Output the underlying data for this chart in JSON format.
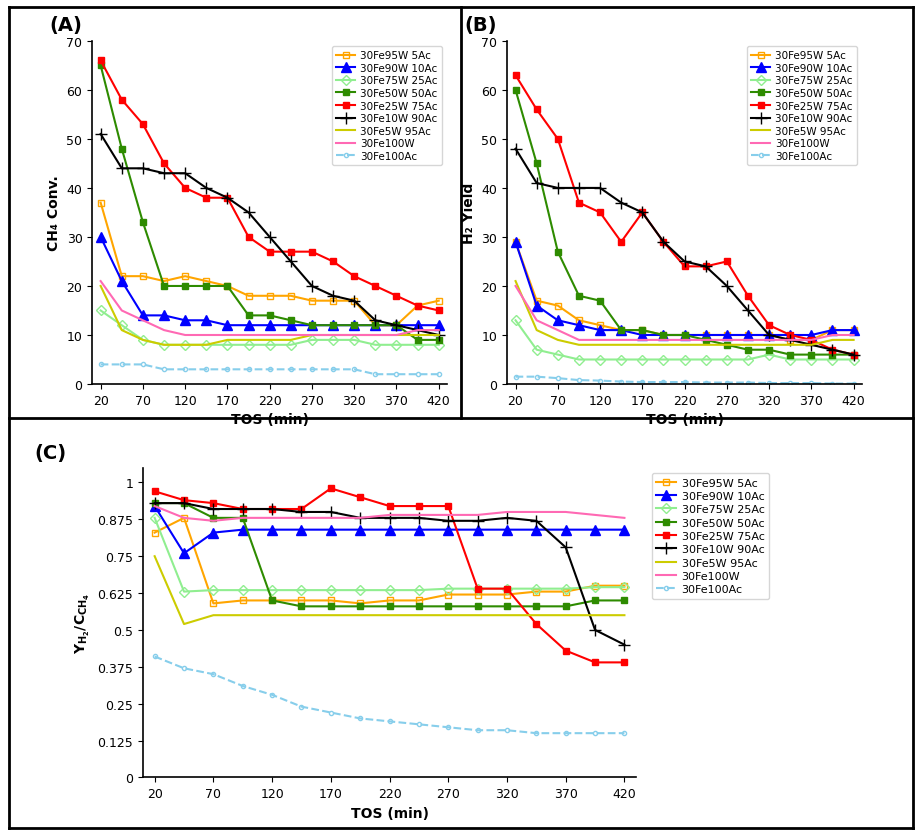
{
  "tos": [
    20,
    45,
    70,
    95,
    120,
    145,
    170,
    195,
    220,
    245,
    270,
    295,
    320,
    345,
    370,
    395,
    420
  ],
  "series": [
    {
      "label": "30Fe95W 5Ac",
      "color": "#FFA500",
      "marker": "s",
      "fillstyle": "none",
      "linestyle": "-",
      "A": [
        37,
        22,
        22,
        21,
        22,
        21,
        20,
        18,
        18,
        18,
        17,
        17,
        17,
        12,
        12,
        16,
        17
      ],
      "B": [
        29,
        17,
        16,
        13,
        12,
        11,
        11,
        10,
        10,
        10,
        10,
        10,
        10,
        9,
        9,
        11,
        11
      ],
      "C": [
        0.83,
        0.88,
        0.59,
        0.6,
        0.6,
        0.6,
        0.6,
        0.59,
        0.6,
        0.6,
        0.62,
        0.62,
        0.62,
        0.63,
        0.63,
        0.65,
        0.65
      ]
    },
    {
      "label": "30Fe90W 10Ac",
      "color": "#0000FF",
      "marker": "^",
      "fillstyle": "full",
      "linestyle": "-",
      "A": [
        30,
        21,
        14,
        14,
        13,
        13,
        12,
        12,
        12,
        12,
        12,
        12,
        12,
        12,
        12,
        12,
        12
      ],
      "B": [
        29,
        16,
        13,
        12,
        11,
        11,
        10,
        10,
        10,
        10,
        10,
        10,
        10,
        10,
        10,
        11,
        11
      ],
      "C": [
        0.92,
        0.76,
        0.83,
        0.84,
        0.84,
        0.84,
        0.84,
        0.84,
        0.84,
        0.84,
        0.84,
        0.84,
        0.84,
        0.84,
        0.84,
        0.84,
        0.84
      ]
    },
    {
      "label": "30Fe75W 25Ac",
      "color": "#90EE90",
      "marker": "D",
      "fillstyle": "none",
      "linestyle": "-",
      "A": [
        15,
        12,
        9,
        8,
        8,
        8,
        8,
        8,
        8,
        8,
        9,
        9,
        9,
        8,
        8,
        8,
        8
      ],
      "B": [
        13,
        7,
        6,
        5,
        5,
        5,
        5,
        5,
        5,
        5,
        5,
        5,
        6,
        5,
        5,
        5,
        5
      ],
      "C": [
        0.88,
        0.63,
        0.635,
        0.635,
        0.635,
        0.635,
        0.635,
        0.635,
        0.635,
        0.635,
        0.64,
        0.64,
        0.64,
        0.64,
        0.64,
        0.645,
        0.645
      ]
    },
    {
      "label": "30Fe50W 50Ac",
      "color": "#2E8B00",
      "marker": "s",
      "fillstyle": "full",
      "linestyle": "-",
      "A": [
        65,
        48,
        33,
        20,
        20,
        20,
        20,
        14,
        14,
        13,
        12,
        12,
        12,
        12,
        12,
        9,
        9
      ],
      "B": [
        60,
        45,
        27,
        18,
        17,
        11,
        11,
        10,
        10,
        9,
        8,
        7,
        7,
        6,
        6,
        6,
        6
      ],
      "C": [
        0.93,
        0.93,
        0.88,
        0.88,
        0.6,
        0.58,
        0.58,
        0.58,
        0.58,
        0.58,
        0.58,
        0.58,
        0.58,
        0.58,
        0.58,
        0.6,
        0.6
      ]
    },
    {
      "label": "30Fe25W 75Ac",
      "color": "#FF0000",
      "marker": "s",
      "fillstyle": "full",
      "linestyle": "-",
      "A": [
        66,
        58,
        53,
        45,
        40,
        38,
        38,
        30,
        27,
        27,
        27,
        25,
        22,
        20,
        18,
        16,
        15
      ],
      "B": [
        63,
        56,
        50,
        37,
        35,
        29,
        35,
        29,
        24,
        24,
        25,
        18,
        12,
        10,
        9,
        7,
        6
      ],
      "C": [
        0.97,
        0.94,
        0.93,
        0.91,
        0.91,
        0.91,
        0.98,
        0.95,
        0.92,
        0.92,
        0.92,
        0.64,
        0.64,
        0.52,
        0.43,
        0.39,
        0.39
      ]
    },
    {
      "label": "30Fe10W 90Ac",
      "color": "#000000",
      "marker": "+",
      "fillstyle": "full",
      "linestyle": "-",
      "A": [
        51,
        44,
        44,
        43,
        43,
        40,
        38,
        35,
        30,
        25,
        20,
        18,
        17,
        13,
        12,
        11,
        10
      ],
      "B": [
        48,
        41,
        40,
        40,
        40,
        37,
        35,
        29,
        25,
        24,
        20,
        15,
        10,
        9,
        8,
        7,
        6
      ],
      "C": [
        0.93,
        0.93,
        0.91,
        0.91,
        0.91,
        0.9,
        0.9,
        0.88,
        0.88,
        0.88,
        0.87,
        0.87,
        0.88,
        0.87,
        0.78,
        0.5,
        0.45
      ]
    },
    {
      "label": "30Fe5W 95Ac",
      "color": "#CCCC00",
      "marker": "None",
      "fillstyle": "full",
      "linestyle": "-",
      "A": [
        20,
        11,
        9,
        8,
        8,
        8,
        9,
        9,
        9,
        9,
        10,
        10,
        10,
        10,
        10,
        10,
        10
      ],
      "B": [
        21,
        11,
        9,
        8,
        8,
        8,
        8,
        8,
        8,
        8,
        8,
        8,
        8,
        8,
        8,
        9,
        9
      ],
      "C": [
        0.75,
        0.52,
        0.55,
        0.55,
        0.55,
        0.55,
        0.55,
        0.55,
        0.55,
        0.55,
        0.55,
        0.55,
        0.55,
        0.55,
        0.55,
        0.55,
        0.55
      ]
    },
    {
      "label": "30Fe100W",
      "color": "#FF69B4",
      "marker": "None",
      "fillstyle": "full",
      "linestyle": "-",
      "A": [
        21,
        15,
        13,
        11,
        10,
        10,
        10,
        10,
        10,
        10,
        10,
        10,
        10,
        10,
        10,
        11,
        11
      ],
      "B": [
        20,
        13,
        11,
        9,
        9,
        9,
        9,
        9,
        9,
        9,
        9,
        9,
        9,
        9,
        9,
        10,
        10
      ],
      "C": [
        0.92,
        0.88,
        0.87,
        0.88,
        0.88,
        0.88,
        0.88,
        0.88,
        0.89,
        0.89,
        0.89,
        0.89,
        0.9,
        0.9,
        0.9,
        0.89,
        0.88
      ]
    },
    {
      "label": "30Fe100Ac",
      "color": "#87CEEB",
      "marker": "o",
      "fillstyle": "none",
      "linestyle": "--",
      "A": [
        4,
        4,
        4,
        3,
        3,
        3,
        3,
        3,
        3,
        3,
        3,
        3,
        3,
        2,
        2,
        2,
        2
      ],
      "B": [
        1.5,
        1.5,
        1.2,
        0.8,
        0.7,
        0.5,
        0.4,
        0.4,
        0.4,
        0.3,
        0.3,
        0.3,
        0.2,
        0.2,
        0.2,
        0.1,
        0.1
      ],
      "C": [
        0.41,
        0.37,
        0.35,
        0.31,
        0.28,
        0.24,
        0.22,
        0.2,
        0.19,
        0.18,
        0.17,
        0.16,
        0.16,
        0.15,
        0.15,
        0.15,
        0.15
      ]
    }
  ],
  "xticks": [
    20,
    70,
    120,
    170,
    220,
    270,
    320,
    370,
    420
  ],
  "xlim": [
    10,
    430
  ],
  "A_ylim": [
    0,
    70
  ],
  "A_yticks": [
    0,
    10,
    20,
    30,
    40,
    50,
    60,
    70
  ],
  "B_ylim": [
    0,
    70
  ],
  "B_yticks": [
    0,
    10,
    20,
    30,
    40,
    50,
    60,
    70
  ],
  "C_ylim": [
    0,
    1.05
  ],
  "C_yticks": [
    0,
    0.125,
    0.25,
    0.375,
    0.5,
    0.625,
    0.75,
    0.875,
    1.0
  ],
  "C_yticklabels": [
    "0",
    "0.125",
    "0.25",
    "0.375",
    "0.5",
    "0.625",
    "0.75",
    "0.875",
    "1"
  ],
  "xlabel": "TOS (min)",
  "A_ylabel": "CH₄ Conv.",
  "B_ylabel": "H₂ Yield",
  "C_ylabel": "Y_{H2}/C_{CH4}",
  "panel_labels": [
    "(A)",
    "(B)",
    "(C)"
  ]
}
